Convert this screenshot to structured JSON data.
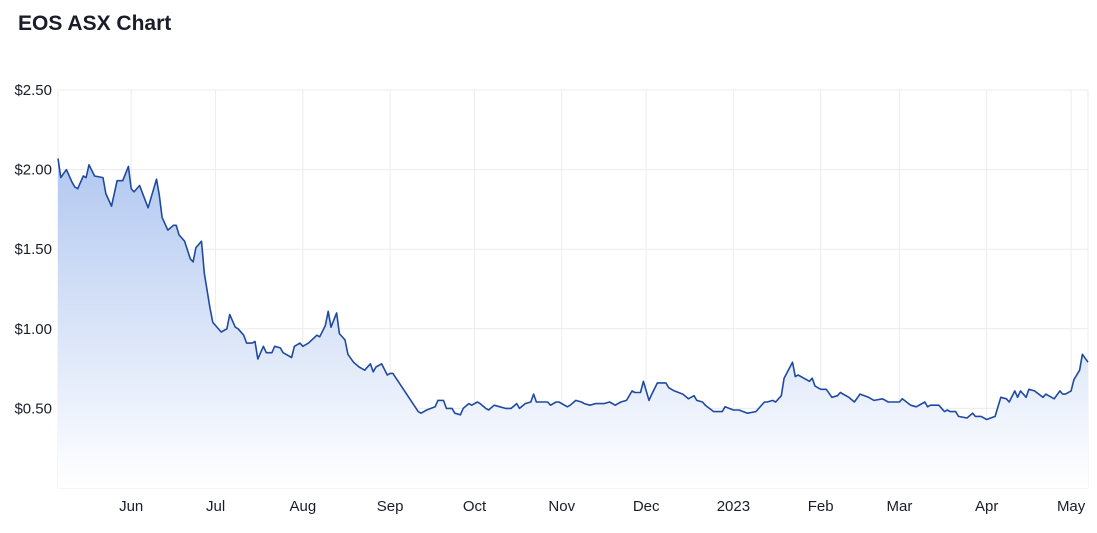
{
  "title": "EOS ASX Chart",
  "colors": {
    "line": "#1f4aa0",
    "fill_top": "#b2c8f1",
    "fill_bottom": "#ffffff",
    "grid": "#ececf0"
  },
  "chart_data": {
    "type": "area",
    "title": "EOS ASX Chart",
    "xlabel": "",
    "ylabel": "",
    "ylim": [
      0,
      2.5
    ],
    "grid": true,
    "y_ticks": [
      {
        "value": 0.5,
        "label": "$0.50"
      },
      {
        "value": 1.0,
        "label": "$1.00"
      },
      {
        "value": 1.5,
        "label": "$1.50"
      },
      {
        "value": 2.0,
        "label": "$2.00"
      },
      {
        "value": 2.5,
        "label": "$2.50"
      }
    ],
    "x_ticks": [
      {
        "date": "2022-06-01",
        "label": "Jun"
      },
      {
        "date": "2022-07-01",
        "label": "Jul"
      },
      {
        "date": "2022-08-01",
        "label": "Aug"
      },
      {
        "date": "2022-09-01",
        "label": "Sep"
      },
      {
        "date": "2022-10-01",
        "label": "Oct"
      },
      {
        "date": "2022-11-01",
        "label": "Nov"
      },
      {
        "date": "2022-12-01",
        "label": "Dec"
      },
      {
        "date": "2023-01-01",
        "label": "2023"
      },
      {
        "date": "2023-02-01",
        "label": "Feb"
      },
      {
        "date": "2023-03-01",
        "label": "Mar"
      },
      {
        "date": "2023-04-01",
        "label": "Apr"
      },
      {
        "date": "2023-05-01",
        "label": "May"
      }
    ],
    "points": [
      [
        "2022-05-06",
        2.07
      ],
      [
        "2022-05-07",
        1.95
      ],
      [
        "2022-05-09",
        2.0
      ],
      [
        "2022-05-11",
        1.92
      ],
      [
        "2022-05-12",
        1.89
      ],
      [
        "2022-05-13",
        1.88
      ],
      [
        "2022-05-15",
        1.96
      ],
      [
        "2022-05-16",
        1.95
      ],
      [
        "2022-05-17",
        2.03
      ],
      [
        "2022-05-19",
        1.96
      ],
      [
        "2022-05-22",
        1.95
      ],
      [
        "2022-05-23",
        1.85
      ],
      [
        "2022-05-25",
        1.77
      ],
      [
        "2022-05-27",
        1.93
      ],
      [
        "2022-05-29",
        1.93
      ],
      [
        "2022-05-31",
        2.02
      ],
      [
        "2022-06-01",
        1.88
      ],
      [
        "2022-06-02",
        1.86
      ],
      [
        "2022-06-04",
        1.9
      ],
      [
        "2022-06-07",
        1.76
      ],
      [
        "2022-06-10",
        1.94
      ],
      [
        "2022-06-11",
        1.84
      ],
      [
        "2022-06-12",
        1.7
      ],
      [
        "2022-06-14",
        1.62
      ],
      [
        "2022-06-16",
        1.65
      ],
      [
        "2022-06-17",
        1.65
      ],
      [
        "2022-06-18",
        1.59
      ],
      [
        "2022-06-20",
        1.55
      ],
      [
        "2022-06-22",
        1.44
      ],
      [
        "2022-06-23",
        1.42
      ],
      [
        "2022-06-24",
        1.51
      ],
      [
        "2022-06-26",
        1.55
      ],
      [
        "2022-06-27",
        1.35
      ],
      [
        "2022-06-29",
        1.13
      ],
      [
        "2022-06-30",
        1.04
      ],
      [
        "2022-07-03",
        0.98
      ],
      [
        "2022-07-05",
        1.0
      ],
      [
        "2022-07-06",
        1.09
      ],
      [
        "2022-07-08",
        1.01
      ],
      [
        "2022-07-09",
        1.0
      ],
      [
        "2022-07-11",
        0.96
      ],
      [
        "2022-07-12",
        0.91
      ],
      [
        "2022-07-14",
        0.91
      ],
      [
        "2022-07-15",
        0.92
      ],
      [
        "2022-07-16",
        0.81
      ],
      [
        "2022-07-18",
        0.89
      ],
      [
        "2022-07-19",
        0.85
      ],
      [
        "2022-07-21",
        0.85
      ],
      [
        "2022-07-22",
        0.89
      ],
      [
        "2022-07-24",
        0.88
      ],
      [
        "2022-07-25",
        0.85
      ],
      [
        "2022-07-28",
        0.82
      ],
      [
        "2022-07-29",
        0.89
      ],
      [
        "2022-07-31",
        0.91
      ],
      [
        "2022-08-01",
        0.89
      ],
      [
        "2022-08-03",
        0.91
      ],
      [
        "2022-08-06",
        0.96
      ],
      [
        "2022-08-07",
        0.95
      ],
      [
        "2022-08-09",
        1.02
      ],
      [
        "2022-08-10",
        1.11
      ],
      [
        "2022-08-11",
        1.01
      ],
      [
        "2022-08-13",
        1.1
      ],
      [
        "2022-08-14",
        0.97
      ],
      [
        "2022-08-16",
        0.93
      ],
      [
        "2022-08-17",
        0.84
      ],
      [
        "2022-08-19",
        0.79
      ],
      [
        "2022-08-21",
        0.76
      ],
      [
        "2022-08-22",
        0.75
      ],
      [
        "2022-08-23",
        0.74
      ],
      [
        "2022-08-25",
        0.78
      ],
      [
        "2022-08-26",
        0.73
      ],
      [
        "2022-08-27",
        0.76
      ],
      [
        "2022-08-29",
        0.78
      ],
      [
        "2022-08-31",
        0.71
      ],
      [
        "2022-09-01",
        0.72
      ],
      [
        "2022-09-02",
        0.72
      ],
      [
        "2022-09-11",
        0.48
      ],
      [
        "2022-09-12",
        0.47
      ],
      [
        "2022-09-14",
        0.49
      ],
      [
        "2022-09-17",
        0.51
      ],
      [
        "2022-09-18",
        0.55
      ],
      [
        "2022-09-20",
        0.55
      ],
      [
        "2022-09-21",
        0.5
      ],
      [
        "2022-09-23",
        0.5
      ],
      [
        "2022-09-24",
        0.47
      ],
      [
        "2022-09-26",
        0.46
      ],
      [
        "2022-09-27",
        0.5
      ],
      [
        "2022-09-29",
        0.53
      ],
      [
        "2022-09-30",
        0.52
      ],
      [
        "2022-10-02",
        0.54
      ],
      [
        "2022-10-03",
        0.53
      ],
      [
        "2022-10-05",
        0.5
      ],
      [
        "2022-10-06",
        0.49
      ],
      [
        "2022-10-08",
        0.52
      ],
      [
        "2022-10-10",
        0.51
      ],
      [
        "2022-10-12",
        0.5
      ],
      [
        "2022-10-14",
        0.5
      ],
      [
        "2022-10-16",
        0.53
      ],
      [
        "2022-10-17",
        0.5
      ],
      [
        "2022-10-19",
        0.53
      ],
      [
        "2022-10-21",
        0.54
      ],
      [
        "2022-10-22",
        0.59
      ],
      [
        "2022-10-23",
        0.54
      ],
      [
        "2022-10-27",
        0.54
      ],
      [
        "2022-10-28",
        0.52
      ],
      [
        "2022-10-30",
        0.54
      ],
      [
        "2022-10-31",
        0.54
      ],
      [
        "2022-11-03",
        0.51
      ],
      [
        "2022-11-04",
        0.52
      ],
      [
        "2022-11-06",
        0.55
      ],
      [
        "2022-11-08",
        0.54
      ],
      [
        "2022-11-09",
        0.53
      ],
      [
        "2022-11-11",
        0.52
      ],
      [
        "2022-11-13",
        0.53
      ],
      [
        "2022-11-16",
        0.53
      ],
      [
        "2022-11-18",
        0.54
      ],
      [
        "2022-11-20",
        0.52
      ],
      [
        "2022-11-22",
        0.54
      ],
      [
        "2022-11-24",
        0.55
      ],
      [
        "2022-11-26",
        0.61
      ],
      [
        "2022-11-27",
        0.6
      ],
      [
        "2022-11-29",
        0.6
      ],
      [
        "2022-11-30",
        0.67
      ],
      [
        "2022-12-02",
        0.55
      ],
      [
        "2022-12-03",
        0.59
      ],
      [
        "2022-12-05",
        0.66
      ],
      [
        "2022-12-08",
        0.66
      ],
      [
        "2022-12-09",
        0.63
      ],
      [
        "2022-12-11",
        0.61
      ],
      [
        "2022-12-14",
        0.59
      ],
      [
        "2022-12-16",
        0.56
      ],
      [
        "2022-12-18",
        0.58
      ],
      [
        "2022-12-19",
        0.55
      ],
      [
        "2022-12-21",
        0.54
      ],
      [
        "2022-12-22",
        0.52
      ],
      [
        "2022-12-25",
        0.48
      ],
      [
        "2022-12-28",
        0.48
      ],
      [
        "2022-12-29",
        0.51
      ],
      [
        "2023-01-01",
        0.49
      ],
      [
        "2023-01-03",
        0.49
      ],
      [
        "2023-01-06",
        0.47
      ],
      [
        "2023-01-09",
        0.48
      ],
      [
        "2023-01-12",
        0.54
      ],
      [
        "2023-01-13",
        0.54
      ],
      [
        "2023-01-15",
        0.55
      ],
      [
        "2023-01-16",
        0.54
      ],
      [
        "2023-01-18",
        0.58
      ],
      [
        "2023-01-19",
        0.69
      ],
      [
        "2023-01-22",
        0.79
      ],
      [
        "2023-01-23",
        0.7
      ],
      [
        "2023-01-24",
        0.71
      ],
      [
        "2023-01-26",
        0.69
      ],
      [
        "2023-01-28",
        0.67
      ],
      [
        "2023-01-29",
        0.69
      ],
      [
        "2023-01-30",
        0.64
      ],
      [
        "2023-02-01",
        0.62
      ],
      [
        "2023-02-03",
        0.62
      ],
      [
        "2023-02-05",
        0.57
      ],
      [
        "2023-02-07",
        0.58
      ],
      [
        "2023-02-08",
        0.6
      ],
      [
        "2023-02-11",
        0.57
      ],
      [
        "2023-02-13",
        0.54
      ],
      [
        "2023-02-15",
        0.59
      ],
      [
        "2023-02-18",
        0.57
      ],
      [
        "2023-02-20",
        0.55
      ],
      [
        "2023-02-23",
        0.56
      ],
      [
        "2023-02-25",
        0.54
      ],
      [
        "2023-03-01",
        0.54
      ],
      [
        "2023-03-02",
        0.56
      ],
      [
        "2023-03-05",
        0.52
      ],
      [
        "2023-03-07",
        0.51
      ],
      [
        "2023-03-10",
        0.54
      ],
      [
        "2023-03-11",
        0.51
      ],
      [
        "2023-03-12",
        0.52
      ],
      [
        "2023-03-15",
        0.52
      ],
      [
        "2023-03-17",
        0.48
      ],
      [
        "2023-03-18",
        0.49
      ],
      [
        "2023-03-19",
        0.48
      ],
      [
        "2023-03-21",
        0.48
      ],
      [
        "2023-03-22",
        0.45
      ],
      [
        "2023-03-25",
        0.44
      ],
      [
        "2023-03-27",
        0.47
      ],
      [
        "2023-03-28",
        0.45
      ],
      [
        "2023-03-30",
        0.45
      ],
      [
        "2023-04-01",
        0.43
      ],
      [
        "2023-04-04",
        0.45
      ],
      [
        "2023-04-06",
        0.57
      ],
      [
        "2023-04-08",
        0.56
      ],
      [
        "2023-04-09",
        0.54
      ],
      [
        "2023-04-11",
        0.61
      ],
      [
        "2023-04-12",
        0.57
      ],
      [
        "2023-04-13",
        0.61
      ],
      [
        "2023-04-15",
        0.57
      ],
      [
        "2023-04-16",
        0.62
      ],
      [
        "2023-04-18",
        0.61
      ],
      [
        "2023-04-21",
        0.57
      ],
      [
        "2023-04-22",
        0.59
      ],
      [
        "2023-04-25",
        0.56
      ],
      [
        "2023-04-27",
        0.61
      ],
      [
        "2023-04-28",
        0.59
      ],
      [
        "2023-04-29",
        0.59
      ],
      [
        "2023-05-01",
        0.61
      ],
      [
        "2023-05-02",
        0.68
      ],
      [
        "2023-05-04",
        0.74
      ],
      [
        "2023-05-05",
        0.84
      ],
      [
        "2023-05-07",
        0.79
      ]
    ]
  }
}
